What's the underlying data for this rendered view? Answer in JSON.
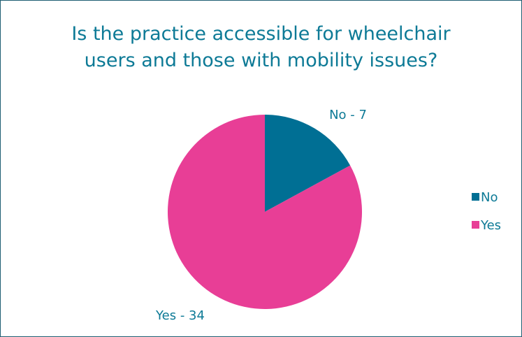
{
  "chart_data": {
    "type": "pie",
    "title_lines": [
      "Is the practice accessible for wheelchair",
      "users and those with mobility issues?"
    ],
    "slices": [
      {
        "name": "No",
        "value": 7,
        "label": "No - 7",
        "color": "#006f94"
      },
      {
        "name": "Yes",
        "value": 34,
        "label": "Yes - 34",
        "color": "#e83e96"
      }
    ],
    "legend": {
      "placement": "right",
      "entries": [
        {
          "label": "No",
          "color": "#006f94"
        },
        {
          "label": "Yes",
          "color": "#e83e96"
        }
      ]
    },
    "label_color": "#0d7a96"
  }
}
